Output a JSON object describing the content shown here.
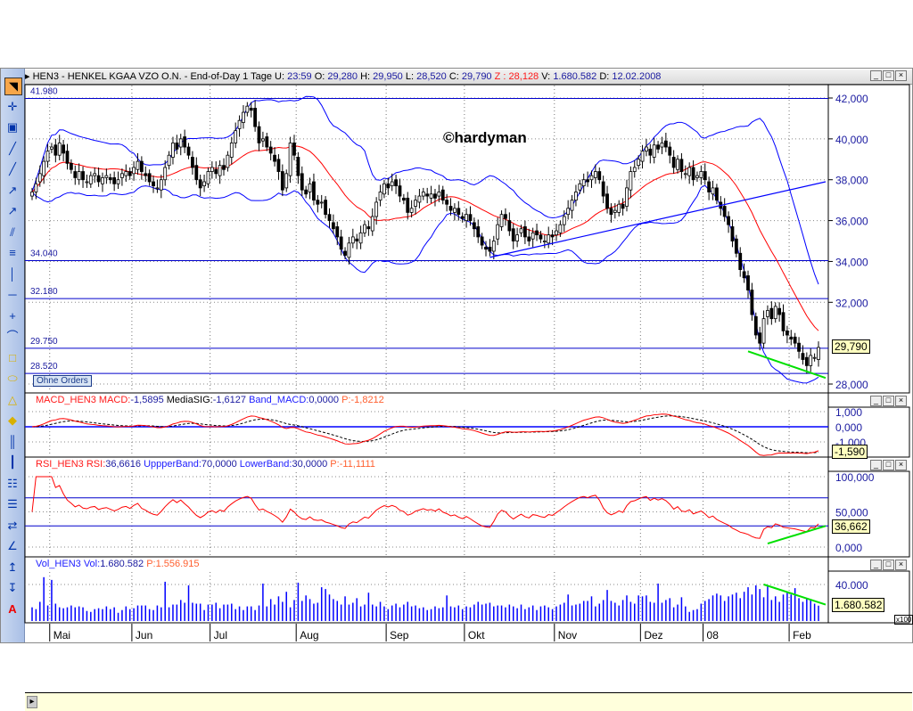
{
  "header": {
    "title": "HEN3 - HENKEL KGAA VZO O.N. - End-of-Day 1 Tage",
    "u_label": "U:",
    "u": "23:59",
    "o_label": "O:",
    "o": "29,280",
    "h_label": "H:",
    "h": "29,950",
    "l_label": "L:",
    "l": "28,520",
    "c_label": "C:",
    "c": "29,790",
    "z_label": "Z :",
    "z": "28,128",
    "v_label": "V:",
    "v": "1.680.582",
    "d_label": "D:",
    "d": "12.02.2008"
  },
  "watermark": "©hardyman",
  "ohne_orders": "Ohne Orders",
  "colors": {
    "candle": "#000000",
    "sma": "#ff0000",
    "bollinger": "#0000ff",
    "hline": "#0000cc",
    "macd": "#ff0000",
    "signal": "#000000",
    "rsi": "#ff0000",
    "volume": "#0000ff",
    "trend_green": "#00e000"
  },
  "toolbar_icons": [
    "cursor-icon",
    "crosshair-icon",
    "rectangle-icon",
    "line-icon",
    "line-icon",
    "ray-icon",
    "arrow-line-icon",
    "channel-icon",
    "parallel-lines-icon",
    "vertical-line-icon",
    "horizontal-line-icon",
    "cross-icon",
    "curve-icon",
    "square-icon",
    "ellipse-icon",
    "triangle-icon",
    "diamond-icon",
    "fibonacci-icon",
    "gann-icon",
    "speed-lines-icon",
    "cycle-lines-icon",
    "arrows-icon",
    "angle-icon",
    "arrow-up-icon",
    "arrow-down-icon",
    "text-icon"
  ],
  "price_pane": {
    "axis_ticks": [
      "42,000",
      "40,000",
      "38,000",
      "36,000",
      "34,000",
      "32,000",
      "28,000"
    ],
    "last_tag": "29,790",
    "hlines": [
      {
        "label": "41.980",
        "value": 41.98
      },
      {
        "label": "34.040",
        "value": 34.04
      },
      {
        "label": "32.180",
        "value": 32.18
      },
      {
        "label": "29.750",
        "value": 29.75
      },
      {
        "label": "28.520",
        "value": 28.52
      }
    ]
  },
  "macd_pane": {
    "name": "MACD_HEN3",
    "macd_label": "MACD:",
    "macd": "-1,5895",
    "sig_label": "MediaSIG:",
    "sig": "-1,6127",
    "band_label": "Band_MACD:",
    "band": "0,0000",
    "p_label": "P:",
    "p": "-1,8212",
    "axis_ticks": [
      "1,000",
      "0,000",
      "-1,000"
    ],
    "last_tag": "-1,590"
  },
  "rsi_pane": {
    "name": "RSI_HEN3",
    "rsi_label": "RSI:",
    "rsi": "36,6616",
    "up_label": "UppperBand:",
    "up": "70,0000",
    "low_label": "LowerBand:",
    "low": "30,0000",
    "p_label": "P:",
    "p": "-11,1111",
    "axis_ticks": [
      "100,000",
      "50,000",
      "0,000"
    ],
    "last_tag": "36,662"
  },
  "vol_pane": {
    "name": "Vol_HEN3",
    "vol_label": "Vol:",
    "vol": "1.680.582",
    "p_label": "P:",
    "p": "1.556.915",
    "axis_ticks": [
      "40.000"
    ],
    "last_tag": "1.680.582",
    "scale": "x100"
  },
  "chart_data": {
    "type": "candlestick",
    "ylim": [
      27.5,
      42.5
    ],
    "months": [
      {
        "label": "",
        "days": 5
      },
      {
        "label": "Mai",
        "days": 21
      },
      {
        "label": "Jun",
        "days": 20
      },
      {
        "label": "Jul",
        "days": 22
      },
      {
        "label": "Aug",
        "days": 23
      },
      {
        "label": "Sep",
        "days": 20
      },
      {
        "label": "Okt",
        "days": 23
      },
      {
        "label": "Nov",
        "days": 22
      },
      {
        "label": "Dez",
        "days": 16
      },
      {
        "label": "08",
        "days": 22
      },
      {
        "label": "Feb",
        "days": 8
      }
    ],
    "close": [
      37.4,
      37.8,
      38.3,
      38.9,
      39.4,
      39.6,
      39.2,
      39.8,
      39.3,
      38.8,
      38.5,
      38.1,
      38.4,
      38.0,
      37.9,
      38.2,
      38.3,
      37.9,
      38.1,
      38.2,
      38.0,
      37.8,
      38.0,
      38.3,
      38.4,
      38.2,
      38.6,
      38.9,
      38.4,
      38.2,
      37.9,
      37.7,
      37.6,
      38.0,
      38.6,
      39.2,
      39.8,
      39.5,
      40.0,
      39.6,
      39.2,
      38.6,
      38.0,
      37.6,
      37.9,
      38.4,
      38.6,
      38.3,
      38.7,
      38.5,
      39.2,
      39.8,
      40.4,
      40.9,
      41.3,
      41.6,
      41.4,
      40.6,
      39.8,
      40.0,
      39.6,
      39.3,
      38.9,
      38.4,
      37.5,
      38.3,
      39.8,
      39.2,
      38.2,
      37.5,
      37.3,
      37.8,
      37.0,
      36.8,
      36.9,
      36.3,
      36.0,
      35.6,
      35.2,
      34.6,
      34.3,
      34.9,
      35.2,
      35.0,
      35.4,
      35.8,
      35.6,
      36.2,
      36.9,
      37.4,
      37.8,
      37.6,
      37.9,
      37.7,
      37.2,
      37.0,
      36.4,
      36.6,
      37.0,
      37.2,
      37.4,
      37.2,
      37.3,
      37.1,
      37.4,
      37.0,
      36.8,
      36.5,
      36.6,
      36.3,
      36.1,
      36.3,
      36.0,
      35.6,
      35.2,
      34.8,
      34.6,
      34.5,
      35.0,
      35.8,
      36.3,
      36.1,
      35.5,
      35.0,
      35.3,
      35.6,
      35.2,
      35.0,
      35.4,
      35.3,
      35.1,
      35.0,
      35.3,
      35.2,
      35.5,
      35.8,
      36.2,
      36.6,
      37.0,
      37.4,
      37.8,
      38.0,
      37.9,
      38.2,
      38.4,
      38.0,
      37.2,
      36.6,
      36.3,
      36.5,
      36.8,
      36.6,
      37.6,
      38.4,
      38.6,
      39.0,
      39.4,
      39.6,
      39.2,
      39.7,
      39.5,
      39.8,
      39.6,
      39.2,
      38.6,
      39.0,
      38.4,
      38.3,
      38.6,
      38.0,
      38.2,
      38.4,
      38.0,
      37.4,
      37.6,
      37.0,
      36.6,
      36.2,
      35.8,
      35.0,
      34.4,
      33.6,
      33.2,
      32.6,
      31.4,
      30.4,
      30.0,
      31.2,
      31.6,
      31.2,
      31.8,
      31.4,
      30.6,
      30.4,
      30.2,
      30.0,
      29.6,
      29.2,
      28.9,
      29.4,
      29.3,
      29.79
    ],
    "volume_thousands": [
      1500,
      1300,
      2100,
      4800,
      1700,
      4500,
      1900,
      1500,
      1400,
      1500,
      1700,
      1500,
      1600,
      1500,
      1100,
      1000,
      1300,
      1400,
      1300,
      1600,
      1300,
      1500,
      900,
      1200,
      1600,
      1300,
      1400,
      1700,
      1700,
      1700,
      1300,
      1200,
      1700,
      1500,
      4300,
      1500,
      1800,
      1800,
      2300,
      2000,
      3900,
      2000,
      1900,
      1900,
      1200,
      1800,
      1800,
      2000,
      1400,
      1800,
      1800,
      1900,
      1300,
      1600,
      1200,
      1600,
      1600,
      1200,
      1700,
      4100,
      1600,
      2400,
      1800,
      2700,
      2100,
      3200,
      1500,
      2300,
      4200,
      2200,
      2800,
      2400,
      1900,
      2000,
      3700,
      3500,
      2900,
      2400,
      2200,
      1800,
      2700,
      1800,
      2000,
      2500,
      1600,
      1800,
      3100,
      1800,
      1600,
      2100,
      1600,
      1300,
      1700,
      1900,
      1500,
      1800,
      2100,
      1600,
      1700,
      1400,
      1500,
      1200,
      1300,
      1600,
      1400,
      1500,
      2800,
      1600,
      1500,
      1700,
      1300,
      1600,
      1500,
      1800,
      2100,
      1800,
      1900,
      2000,
      1600,
      1700,
      1700,
      1500,
      1800,
      1600,
      1400,
      1800,
      1300,
      1500,
      1700,
      1200,
      1600,
      1700,
      1500,
      1300,
      1600,
      1800,
      2000,
      2900,
      1700,
      1800,
      1900,
      2200,
      2200,
      2700,
      1600,
      1900,
      2300,
      3400,
      2200,
      2000,
      1700,
      2300,
      2800,
      2100,
      1900,
      2800,
      2700,
      2800,
      2100,
      2000,
      4100,
      2000,
      2300,
      2500,
      1500,
      1800,
      2600,
      1600,
      1000,
      1200,
      1300,
      1900,
      2200,
      2400,
      2800,
      3000,
      2800,
      2200,
      2700,
      2900,
      3100,
      2500,
      3200,
      3700,
      2900,
      3900,
      3500,
      2600,
      3800,
      2300,
      2700,
      2100,
      2900,
      3100,
      2900,
      3600,
      2500,
      2100,
      2500,
      2300,
      1900,
      1681
    ],
    "trendlines": [
      {
        "pane": "price",
        "color": "blue",
        "from": {
          "index": 117,
          "value": 34.2
        },
        "to": {
          "index": 201,
          "value": 37.9
        }
      },
      {
        "pane": "price",
        "color": "green",
        "from": {
          "index": 183,
          "value": 29.6
        },
        "to": {
          "index": 201,
          "value": 28.3
        }
      },
      {
        "pane": "rsi",
        "color": "green",
        "from": {
          "index": 188,
          "value": 5
        },
        "to": {
          "index": 201,
          "value": 30
        }
      },
      {
        "pane": "volume",
        "color": "green",
        "from": {
          "index": 187,
          "value": 4000000
        },
        "to": {
          "index": 201,
          "value": 1800000
        }
      }
    ]
  }
}
